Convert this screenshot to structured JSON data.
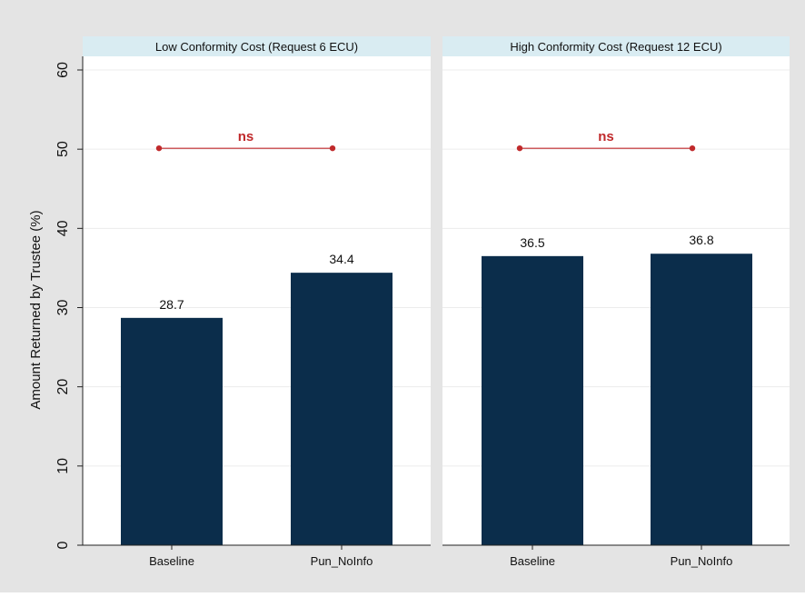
{
  "colors": {
    "outer_background": "#e4e4e4",
    "plot_background": "#ffffff",
    "panel_header": "#d9ecf2",
    "bar": "#0b2d4b",
    "gridline": "#ececec",
    "significance": "#c0292b",
    "text": "#111111"
  },
  "chart_data": [
    {
      "type": "bar",
      "panel_title": "Low Conformity Cost (Request 6 ECU)",
      "categories": [
        "Baseline",
        "Pun_NoInfo"
      ],
      "values": [
        28.7,
        34.4
      ],
      "value_labels": [
        "28.7",
        "34.4"
      ],
      "ylabel": "Amount Returned by Trustee (%)",
      "ylim": [
        0,
        60
      ],
      "yticks": [
        0,
        10,
        20,
        30,
        40,
        50,
        60
      ],
      "grid": true,
      "annotation": {
        "text": "ns",
        "y": 50,
        "from": "Baseline",
        "to": "Pun_NoInfo"
      }
    },
    {
      "type": "bar",
      "panel_title": "High Conformity Cost (Request 12 ECU)",
      "categories": [
        "Baseline",
        "Pun_NoInfo"
      ],
      "values": [
        36.5,
        36.8
      ],
      "value_labels": [
        "36.5",
        "36.8"
      ],
      "ylim": [
        0,
        60
      ],
      "yticks": [
        0,
        10,
        20,
        30,
        40,
        50,
        60
      ],
      "grid": true,
      "annotation": {
        "text": "ns",
        "y": 50,
        "from": "Baseline",
        "to": "Pun_NoInfo"
      }
    }
  ]
}
